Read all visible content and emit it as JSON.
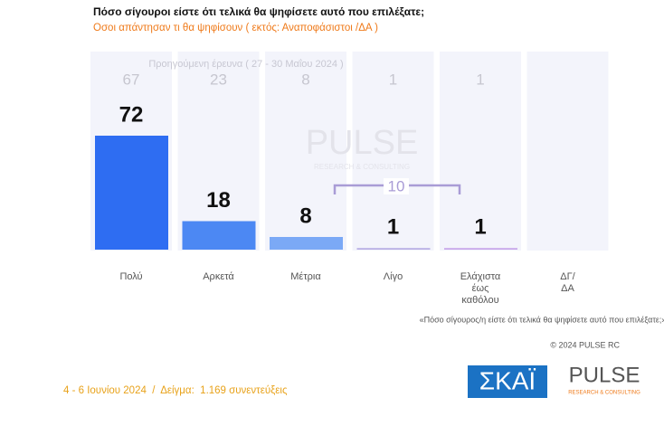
{
  "chart_data": {
    "type": "bar",
    "title": "Πόσο σίγουροι είστε ότι τελικά θα ψηφίσετε αυτό που επιλέξατε;",
    "subtitle": "Οσοι απάντησαν τι θα ψηφίσουν ( εκτός: Αναποφάσιστοι /ΔΑ )",
    "previous_label": "Προηγούμενη έρευνα  ( 27 - 30 Μαΐου 2024 )",
    "categories": [
      "Πολύ",
      "Αρκετά",
      "Μέτρια",
      "Λίγο",
      "Ελάχιστα έως καθόλου",
      "ΔΓ/ ΔΑ"
    ],
    "values": [
      72,
      18,
      8,
      1,
      1,
      null
    ],
    "previous_values": [
      67,
      23,
      8,
      1,
      1,
      null
    ],
    "colors": [
      "#2e6df2",
      "#4c88f3",
      "#7ba9f6",
      "#b8aee4",
      "#c7a6ea",
      "#dcdcf0"
    ],
    "annotation": "10",
    "question_note": "«Πόσο σίγουρος/η είστε ότι τελικά θα ψηφίσετε αυτό που επιλέξατε;»",
    "copyright": "© 2024 PULSE RC",
    "footer": "4 - 6 Ιουνίου 2024  /  Δείγμα:  1.169 συνεντεύξεις",
    "logo_left": "ΣΚΑΪ",
    "logo_right": "PULSE",
    "logo_right_sub": "RESEARCH & CONSULTING",
    "watermark": "PULSE",
    "watermark_sub": "RESEARCH & CONSULTING"
  }
}
